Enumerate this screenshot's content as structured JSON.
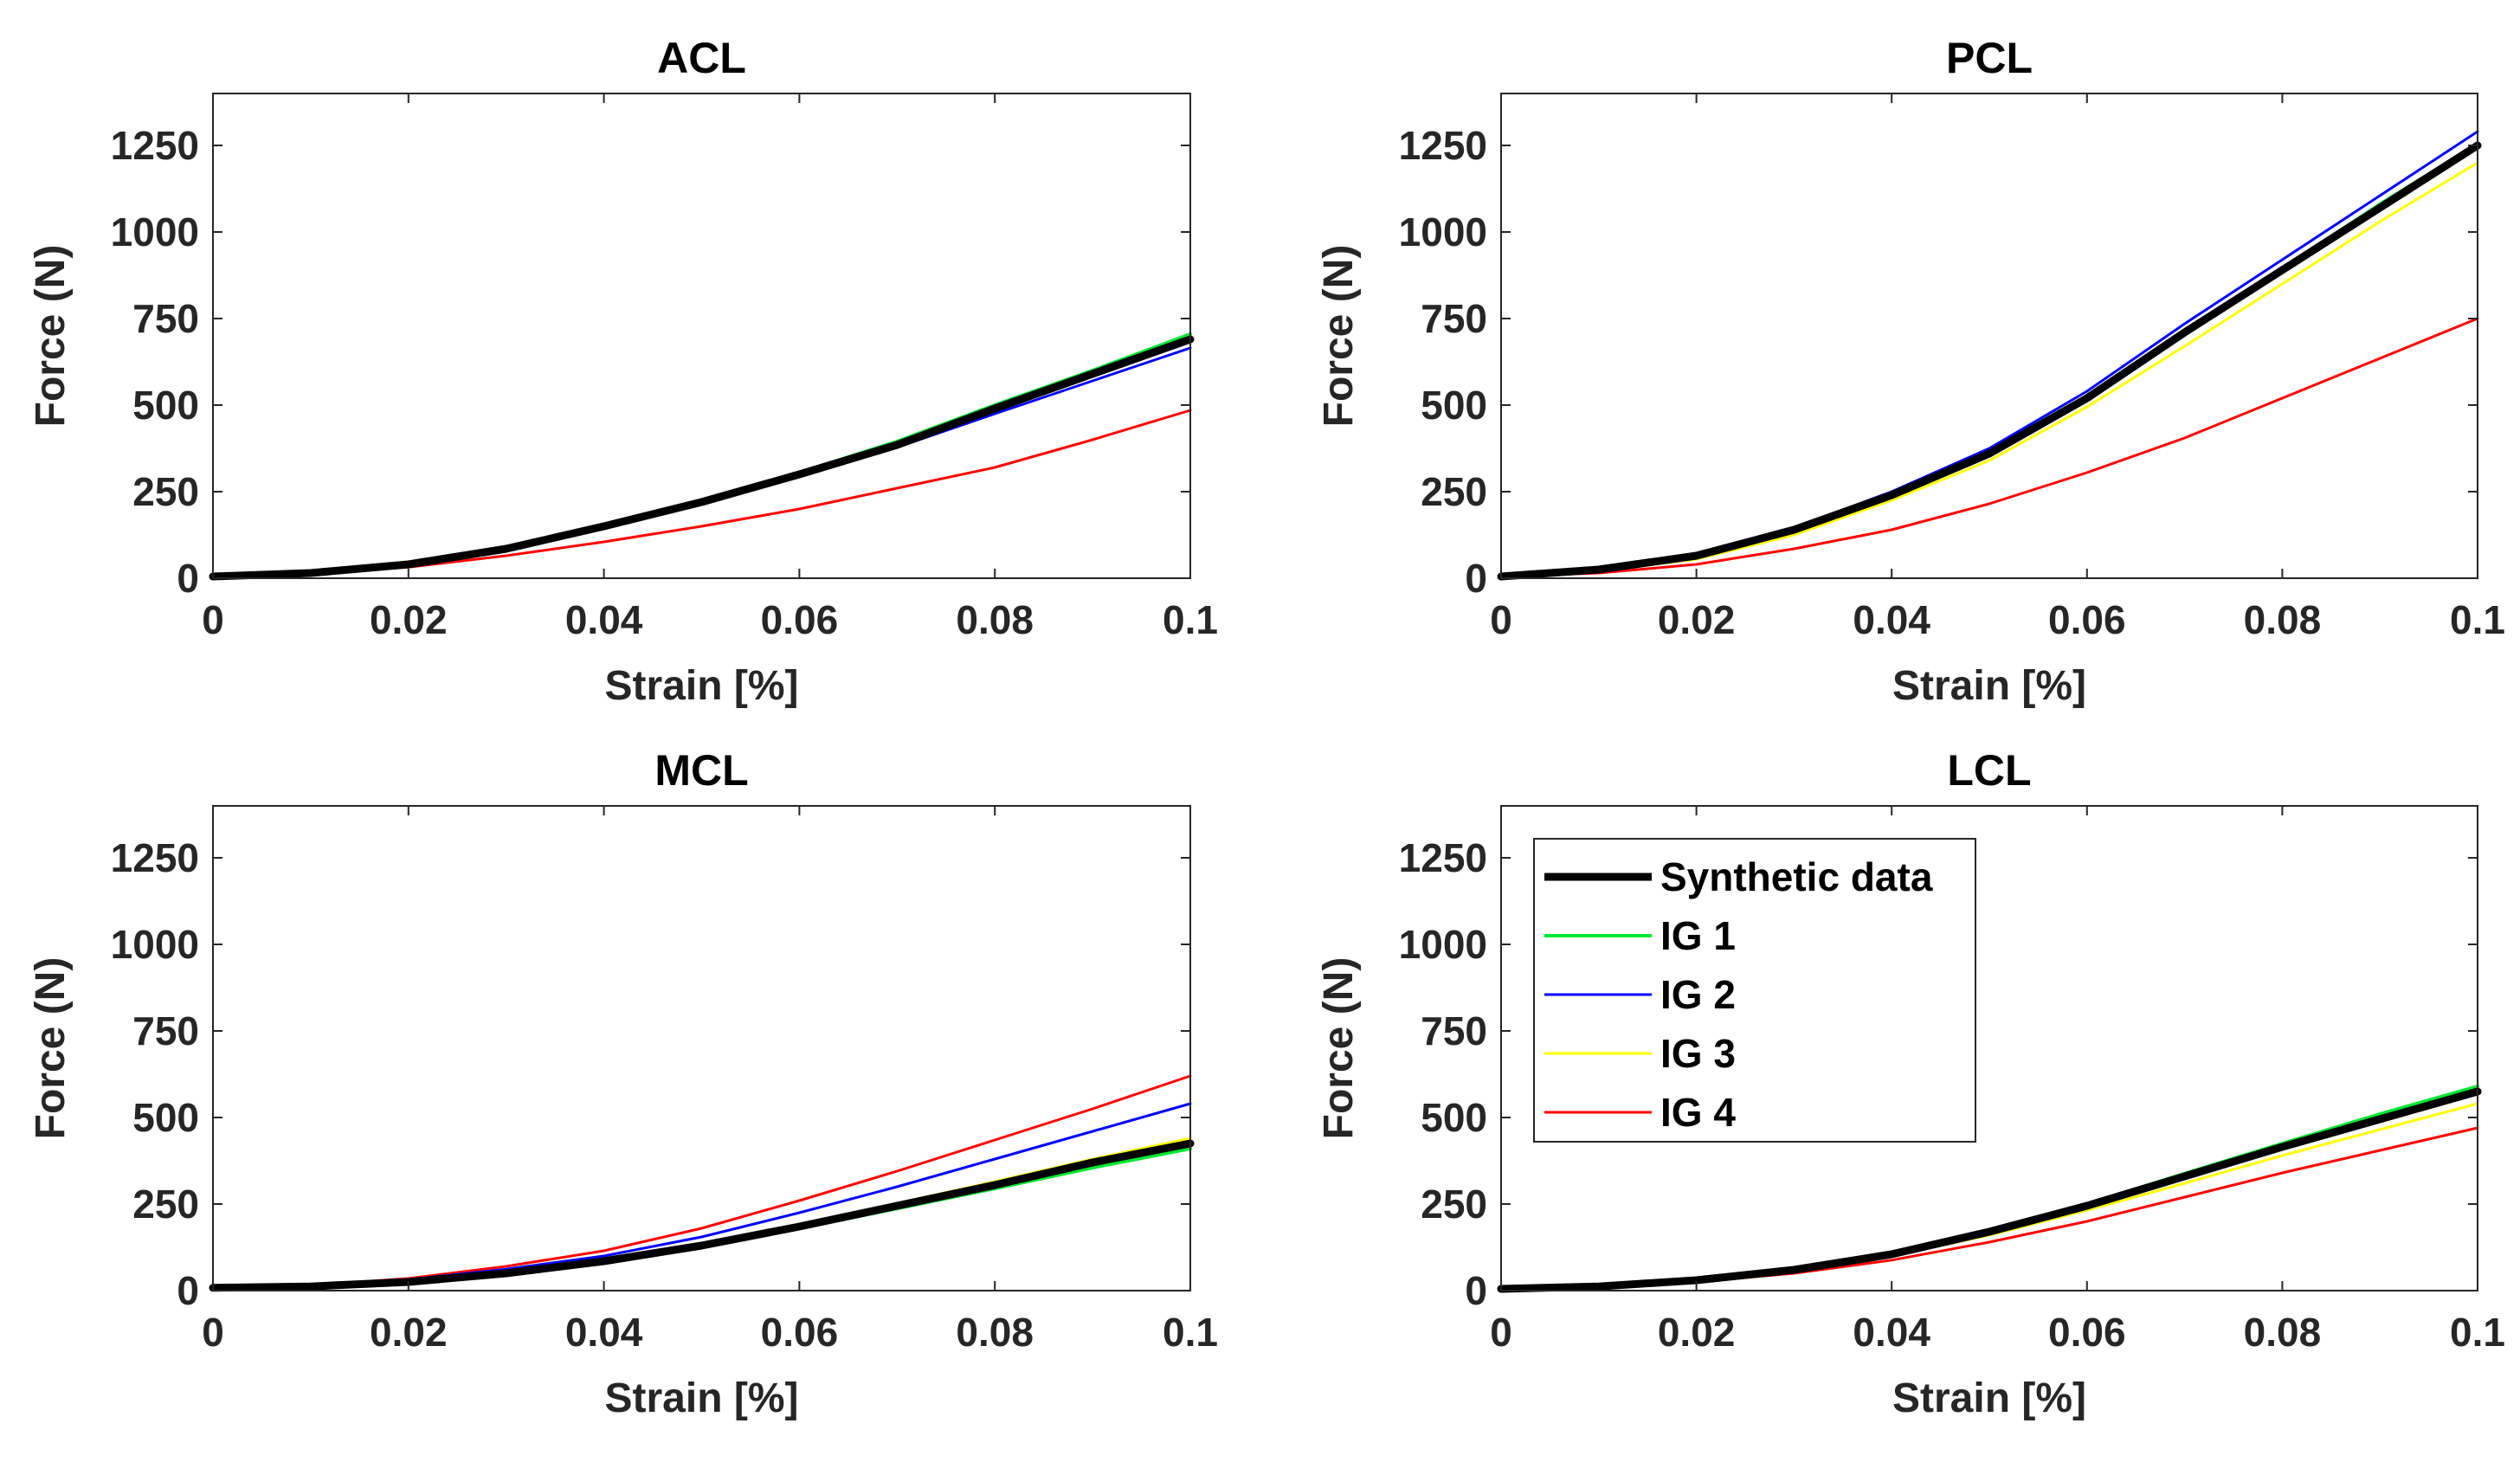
{
  "chart_data": [
    {
      "type": "line",
      "title": "ACL",
      "xlabel": "Strain [%]",
      "ylabel": "Force (N)",
      "xlim": [
        0,
        0.1
      ],
      "ylim": [
        0,
        1400
      ],
      "xticks": [
        0,
        0.02,
        0.04,
        0.06,
        0.08,
        0.1
      ],
      "xtick_labels": [
        "0",
        "0.02",
        "0.04",
        "0.06",
        "0.08",
        "0.1"
      ],
      "yticks": [
        0,
        250,
        500,
        750,
        1000,
        1250
      ],
      "ytick_labels": [
        "0",
        "250",
        "500",
        "750",
        "1000",
        "1250"
      ],
      "x": [
        0,
        0.01,
        0.02,
        0.03,
        0.04,
        0.05,
        0.06,
        0.07,
        0.08,
        0.09,
        0.1
      ],
      "series": [
        {
          "name": "Synthetic data",
          "values": [
            5,
            15,
            40,
            85,
            150,
            220,
            300,
            385,
            490,
            590,
            690
          ]
        },
        {
          "name": "IG 1",
          "values": [
            5,
            16,
            42,
            88,
            152,
            225,
            305,
            395,
            500,
            600,
            705
          ]
        },
        {
          "name": "IG 2",
          "values": [
            5,
            15,
            40,
            84,
            148,
            218,
            295,
            378,
            475,
            570,
            665
          ]
        },
        {
          "name": "IG 3",
          "values": [
            3,
            13,
            36,
            80,
            145,
            218,
            298,
            385,
            485,
            585,
            690
          ]
        },
        {
          "name": "IG 4",
          "values": [
            5,
            14,
            32,
            65,
            105,
            150,
            200,
            260,
            320,
            400,
            485
          ]
        }
      ]
    },
    {
      "type": "line",
      "title": "PCL",
      "xlabel": "Strain [%]",
      "ylabel": "Force (N)",
      "xlim": [
        0,
        0.1
      ],
      "ylim": [
        0,
        1400
      ],
      "xticks": [
        0,
        0.02,
        0.04,
        0.06,
        0.08,
        0.1
      ],
      "xtick_labels": [
        "0",
        "0.02",
        "0.04",
        "0.06",
        "0.08",
        "0.1"
      ],
      "yticks": [
        0,
        250,
        500,
        750,
        1000,
        1250
      ],
      "ytick_labels": [
        "0",
        "250",
        "500",
        "750",
        "1000",
        "1250"
      ],
      "x": [
        0,
        0.01,
        0.02,
        0.03,
        0.04,
        0.05,
        0.06,
        0.07,
        0.08,
        0.09,
        0.1
      ],
      "series": [
        {
          "name": "Synthetic data",
          "values": [
            5,
            25,
            65,
            140,
            240,
            360,
            520,
            710,
            890,
            1070,
            1250
          ]
        },
        {
          "name": "IG 1",
          "values": [
            5,
            26,
            67,
            143,
            245,
            365,
            525,
            715,
            895,
            1080,
            1255
          ]
        },
        {
          "name": "IG 2",
          "values": [
            5,
            26,
            68,
            145,
            250,
            375,
            540,
            735,
            920,
            1105,
            1290
          ]
        },
        {
          "name": "IG 3",
          "values": [
            3,
            20,
            55,
            125,
            225,
            340,
            495,
            670,
            850,
            1030,
            1200
          ]
        },
        {
          "name": "IG 4",
          "values": [
            5,
            15,
            40,
            85,
            140,
            215,
            305,
            405,
            520,
            635,
            750
          ]
        }
      ]
    },
    {
      "type": "line",
      "title": "MCL",
      "xlabel": "Strain [%]",
      "ylabel": "Force (N)",
      "xlim": [
        0,
        0.1
      ],
      "ylim": [
        0,
        1400
      ],
      "xticks": [
        0,
        0.02,
        0.04,
        0.06,
        0.08,
        0.1
      ],
      "xtick_labels": [
        "0",
        "0.02",
        "0.04",
        "0.06",
        "0.08",
        "0.1"
      ],
      "yticks": [
        0,
        250,
        500,
        750,
        1000,
        1250
      ],
      "ytick_labels": [
        "0",
        "250",
        "500",
        "750",
        "1000",
        "1250"
      ],
      "x": [
        0,
        0.01,
        0.02,
        0.03,
        0.04,
        0.05,
        0.06,
        0.07,
        0.08,
        0.09,
        0.1
      ],
      "series": [
        {
          "name": "Synthetic data",
          "values": [
            8,
            12,
            25,
            50,
            85,
            130,
            185,
            245,
            305,
            370,
            425
          ]
        },
        {
          "name": "IG 1",
          "values": [
            8,
            11,
            22,
            46,
            80,
            125,
            180,
            237,
            295,
            355,
            410
          ]
        },
        {
          "name": "IG 2",
          "values": [
            8,
            14,
            32,
            62,
            100,
            155,
            225,
            300,
            380,
            460,
            540
          ]
        },
        {
          "name": "IG 3",
          "values": [
            8,
            12,
            27,
            52,
            88,
            135,
            192,
            252,
            315,
            380,
            440
          ]
        },
        {
          "name": "IG 4",
          "values": [
            8,
            15,
            35,
            70,
            115,
            180,
            260,
            345,
            435,
            525,
            620
          ]
        }
      ]
    },
    {
      "type": "line",
      "title": "LCL",
      "xlabel": "Strain [%]",
      "ylabel": "Force (N)",
      "xlim": [
        0,
        0.1
      ],
      "ylim": [
        0,
        1400
      ],
      "xticks": [
        0,
        0.02,
        0.04,
        0.06,
        0.08,
        0.1
      ],
      "xtick_labels": [
        "0",
        "0.02",
        "0.04",
        "0.06",
        "0.08",
        "0.1"
      ],
      "yticks": [
        0,
        250,
        500,
        750,
        1000,
        1250
      ],
      "ytick_labels": [
        "0",
        "250",
        "500",
        "750",
        "1000",
        "1250"
      ],
      "x": [
        0,
        0.01,
        0.02,
        0.03,
        0.04,
        0.05,
        0.06,
        0.07,
        0.08,
        0.09,
        0.1
      ],
      "series": [
        {
          "name": "Synthetic data",
          "values": [
            5,
            12,
            30,
            60,
            105,
            170,
            245,
            330,
            415,
            495,
            575
          ]
        },
        {
          "name": "IG 1",
          "values": [
            5,
            13,
            32,
            63,
            108,
            175,
            250,
            338,
            425,
            510,
            590
          ]
        },
        {
          "name": "IG 2",
          "values": [
            5,
            12,
            30,
            61,
            106,
            172,
            247,
            333,
            418,
            500,
            580
          ]
        },
        {
          "name": "IG 3",
          "values": [
            3,
            11,
            28,
            57,
            100,
            160,
            232,
            310,
            390,
            465,
            540
          ]
        },
        {
          "name": "IG 4",
          "values": [
            5,
            11,
            25,
            50,
            88,
            140,
            200,
            270,
            340,
            405,
            470
          ]
        }
      ],
      "legend": {
        "entries": [
          "Synthetic data",
          "IG 1",
          "IG 2",
          "IG 3",
          "IG 4"
        ],
        "placement": "top-left"
      }
    }
  ],
  "colors": {
    "Synthetic data": "#000000",
    "IG 1": "#00e832",
    "IG 2": "#0000ff",
    "IG 3": "#ffff00",
    "IG 4": "#ff0000",
    "axis": "#262626"
  }
}
